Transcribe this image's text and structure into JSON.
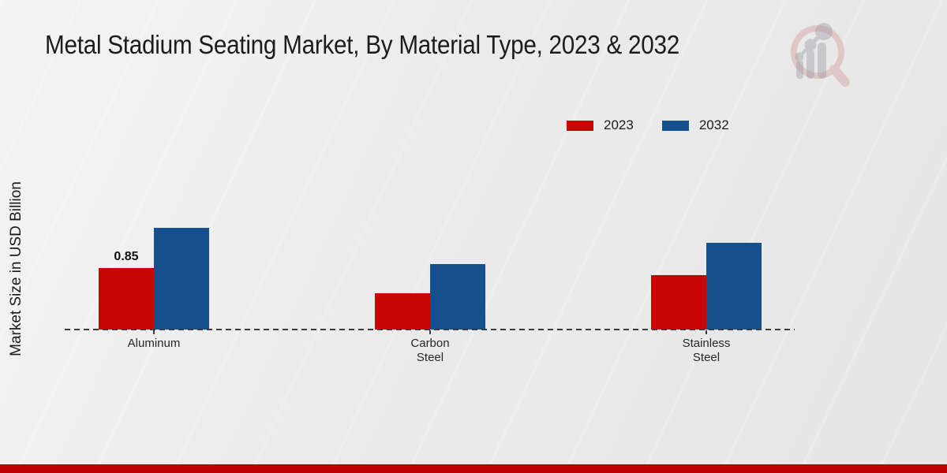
{
  "title": "Metal Stadium Seating Market, By Material Type, 2023 & 2032",
  "ylabel": "Market Size in USD Billion",
  "colors": {
    "series_2023": "#c80404",
    "series_2032": "#15508c",
    "footer_bar": "#c00000",
    "baseline": "#3c3c3c",
    "title_text": "#1c1c1c",
    "background": "#ebebeb"
  },
  "legend": {
    "position": "top-right",
    "items": [
      {
        "label": "2023",
        "color": "#c80404"
      },
      {
        "label": "2032",
        "color": "#15508c"
      }
    ]
  },
  "chart_data": {
    "type": "bar",
    "categories": [
      "Aluminum",
      "Carbon Steel",
      "Stainless Steel"
    ],
    "series": [
      {
        "name": "2023",
        "color": "#c80404",
        "values": [
          0.85,
          0.5,
          0.75
        ]
      },
      {
        "name": "2032",
        "color": "#15508c",
        "values": [
          1.4,
          0.9,
          1.2
        ]
      }
    ],
    "annotations": [
      {
        "series_index": 0,
        "category_index": 0,
        "text": "0.85"
      }
    ],
    "title": "Metal Stadium Seating Market, By Material Type, 2023 & 2032",
    "xlabel": "",
    "ylabel": "Market Size in USD Billion",
    "ylim": [
      0,
      1.55
    ],
    "grid": false,
    "baseline_style": "dashed",
    "legend_position": "top-right",
    "icons": [
      "market-research-logo-icon"
    ]
  }
}
